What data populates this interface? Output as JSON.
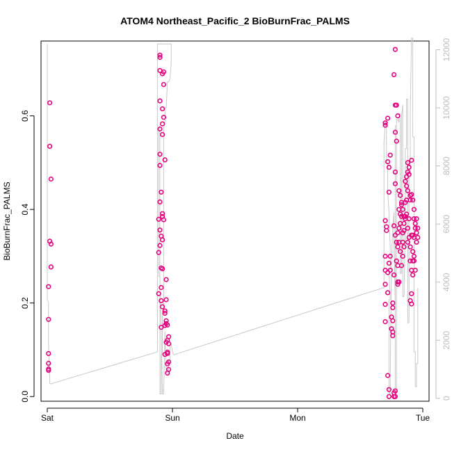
{
  "chart_data": {
    "type": "scatter",
    "title": "ATOM4 Northeast_Pacific_2 BioBurnFrac_PALMS",
    "xlabel": "Date",
    "ylabel": "BioBurnFrac_PALMS",
    "x_axis": {
      "type": "date",
      "ticks": [
        "Sat",
        "Sun",
        "Mon",
        "Tue"
      ],
      "range_days": [
        -0.05,
        3.05
      ]
    },
    "y_axis": {
      "ticks": [
        "0.0",
        "0.2",
        "0.4",
        "0.6"
      ],
      "ylim": [
        -0.01,
        0.76
      ]
    },
    "y2_axis": {
      "ticks": [
        "0",
        "2000",
        "4000",
        "6000",
        "8000",
        "10000",
        "12000"
      ],
      "ylim": [
        -100,
        12300
      ]
    },
    "colors": {
      "points": "#e6007e",
      "altitude_line": "#c8c8c8",
      "axis": "#000000",
      "right_axis": "#bdbdbd"
    },
    "series": [
      {
        "role": "scatter",
        "points": [
          [
            0.02,
            0.628
          ],
          [
            0.02,
            0.535
          ],
          [
            0.03,
            0.465
          ],
          [
            0.02,
            0.332
          ],
          [
            0.03,
            0.326
          ],
          [
            0.03,
            0.277
          ],
          [
            0.01,
            0.235
          ],
          [
            0.01,
            0.165
          ],
          [
            0.01,
            0.092
          ],
          [
            0.01,
            0.071
          ],
          [
            0.01,
            0.059
          ],
          [
            0.01,
            0.056
          ],
          [
            0.9,
            0.73
          ],
          [
            0.9,
            0.725
          ],
          [
            0.9,
            0.697
          ],
          [
            0.92,
            0.69
          ],
          [
            0.93,
            0.694
          ],
          [
            0.93,
            0.667
          ],
          [
            0.9,
            0.632
          ],
          [
            0.92,
            0.615
          ],
          [
            0.93,
            0.597
          ],
          [
            0.92,
            0.583
          ],
          [
            0.9,
            0.572
          ],
          [
            0.92,
            0.56
          ],
          [
            0.9,
            0.518
          ],
          [
            0.94,
            0.506
          ],
          [
            0.9,
            0.494
          ],
          [
            0.91,
            0.437
          ],
          [
            0.9,
            0.416
          ],
          [
            0.92,
            0.391
          ],
          [
            0.92,
            0.385
          ],
          [
            0.89,
            0.379
          ],
          [
            0.93,
            0.378
          ],
          [
            0.9,
            0.356
          ],
          [
            0.91,
            0.343
          ],
          [
            0.92,
            0.335
          ],
          [
            0.9,
            0.323
          ],
          [
            0.89,
            0.308
          ],
          [
            0.91,
            0.275
          ],
          [
            0.92,
            0.273
          ],
          [
            0.95,
            0.25
          ],
          [
            0.89,
            0.22
          ],
          [
            0.91,
            0.233
          ],
          [
            0.95,
            0.207
          ],
          [
            0.91,
            0.205
          ],
          [
            0.92,
            0.192
          ],
          [
            0.94,
            0.183
          ],
          [
            0.94,
            0.178
          ],
          [
            0.95,
            0.162
          ],
          [
            0.95,
            0.156
          ],
          [
            0.94,
            0.152
          ],
          [
            0.96,
            0.153
          ],
          [
            0.91,
            0.148
          ],
          [
            0.97,
            0.128
          ],
          [
            0.96,
            0.12
          ],
          [
            0.95,
            0.116
          ],
          [
            0.97,
            0.113
          ],
          [
            0.94,
            0.09
          ],
          [
            0.96,
            0.095
          ],
          [
            0.96,
            0.092
          ],
          [
            0.97,
            0.074
          ],
          [
            0.96,
            0.07
          ],
          [
            0.97,
            0.058
          ],
          [
            0.96,
            0.05
          ],
          [
            2.7,
            0.585
          ],
          [
            2.7,
            0.58
          ],
          [
            2.72,
            0.595
          ],
          [
            2.7,
            0.376
          ],
          [
            2.71,
            0.363
          ],
          [
            2.71,
            0.355
          ],
          [
            2.7,
            0.3
          ],
          [
            2.7,
            0.27
          ],
          [
            2.72,
            0.265
          ],
          [
            2.7,
            0.24
          ],
          [
            2.72,
            0.222
          ],
          [
            2.7,
            0.197
          ],
          [
            2.7,
            0.16
          ],
          [
            2.72,
            0.502
          ],
          [
            2.73,
            0.49
          ],
          [
            2.74,
            0.516
          ],
          [
            2.73,
            0.437
          ],
          [
            2.74,
            0.3
          ],
          [
            2.73,
            0.285
          ],
          [
            2.74,
            0.27
          ],
          [
            2.72,
            0.045
          ],
          [
            2.73,
            0.015
          ],
          [
            2.73,
            0.0
          ],
          [
            2.76,
            0.2
          ],
          [
            2.76,
            0.19
          ],
          [
            2.75,
            0.17
          ],
          [
            2.76,
            0.162
          ],
          [
            2.75,
            0.145
          ],
          [
            2.76,
            0.138
          ],
          [
            2.76,
            0.13
          ],
          [
            2.77,
            0.365
          ],
          [
            2.78,
            0.455
          ],
          [
            2.78,
            0.48
          ],
          [
            2.77,
            0.26
          ],
          [
            2.78,
            0.345
          ],
          [
            2.79,
            0.33
          ],
          [
            2.8,
            0.32
          ],
          [
            2.79,
            0.29
          ],
          [
            2.8,
            0.28
          ],
          [
            2.8,
            0.245
          ],
          [
            2.81,
            0.245
          ],
          [
            2.8,
            0.24
          ],
          [
            2.77,
            0.008
          ],
          [
            2.78,
            0.012
          ],
          [
            2.77,
            0.0
          ],
          [
            2.78,
            0.0
          ],
          [
            2.77,
            0.688
          ],
          [
            2.78,
            0.742
          ],
          [
            2.78,
            0.623
          ],
          [
            2.79,
            0.623
          ],
          [
            2.78,
            0.565
          ],
          [
            2.8,
            0.6
          ],
          [
            2.79,
            0.546
          ],
          [
            2.81,
            0.44
          ],
          [
            2.82,
            0.43
          ],
          [
            2.83,
            0.41
          ],
          [
            2.81,
            0.4
          ],
          [
            2.82,
            0.39
          ],
          [
            2.83,
            0.385
          ],
          [
            2.82,
            0.37
          ],
          [
            2.81,
            0.36
          ],
          [
            2.8,
            0.35
          ],
          [
            2.81,
            0.33
          ],
          [
            2.82,
            0.31
          ],
          [
            2.84,
            0.35
          ],
          [
            2.83,
            0.415
          ],
          [
            2.84,
            0.4
          ],
          [
            2.85,
            0.385
          ],
          [
            2.85,
            0.37
          ],
          [
            2.84,
            0.33
          ],
          [
            2.85,
            0.32
          ],
          [
            2.84,
            0.3
          ],
          [
            2.83,
            0.28
          ],
          [
            2.85,
            0.355
          ],
          [
            2.86,
            0.415
          ],
          [
            2.86,
            0.385
          ],
          [
            2.86,
            0.38
          ],
          [
            2.87,
            0.39
          ],
          [
            2.88,
            0.5
          ],
          [
            2.88,
            0.48
          ],
          [
            2.87,
            0.47
          ],
          [
            2.86,
            0.46
          ],
          [
            2.87,
            0.45
          ],
          [
            2.88,
            0.44
          ],
          [
            2.87,
            0.42
          ],
          [
            2.88,
            0.36
          ],
          [
            2.89,
            0.49
          ],
          [
            2.89,
            0.475
          ],
          [
            2.9,
            0.43
          ],
          [
            2.9,
            0.42
          ],
          [
            2.89,
            0.38
          ],
          [
            2.89,
            0.34
          ],
          [
            2.88,
            0.33
          ],
          [
            2.9,
            0.32
          ],
          [
            2.91,
            0.505
          ],
          [
            2.91,
            0.432
          ],
          [
            2.91,
            0.345
          ],
          [
            2.9,
            0.29
          ],
          [
            2.92,
            0.29
          ],
          [
            2.92,
            0.42
          ],
          [
            2.93,
            0.4
          ],
          [
            2.93,
            0.38
          ],
          [
            2.92,
            0.345
          ],
          [
            2.94,
            0.36
          ],
          [
            2.93,
            0.34
          ],
          [
            2.92,
            0.31
          ],
          [
            2.93,
            0.3
          ],
          [
            2.91,
            0.27
          ],
          [
            2.92,
            0.26
          ],
          [
            2.93,
            0.29
          ],
          [
            2.94,
            0.27
          ],
          [
            2.91,
            0.22
          ],
          [
            2.9,
            0.205
          ],
          [
            2.91,
            0.198
          ],
          [
            2.95,
            0.33
          ],
          [
            2.95,
            0.38
          ],
          [
            2.94,
            0.37
          ],
          [
            2.96,
            0.36
          ],
          [
            2.95,
            0.35
          ],
          [
            2.96,
            0.34
          ]
        ]
      },
      {
        "role": "altitude",
        "axis": "right",
        "points": [
          [
            0.0,
            12200
          ],
          [
            0.0,
            3400
          ],
          [
            0.01,
            3300
          ],
          [
            0.01,
            1800
          ],
          [
            0.02,
            700
          ],
          [
            0.02,
            500
          ],
          [
            0.03,
            500
          ],
          [
            0.88,
            1600
          ],
          [
            0.88,
            12200
          ],
          [
            0.9,
            12200
          ],
          [
            0.91,
            12200
          ],
          [
            0.92,
            12200
          ],
          [
            0.93,
            12200
          ],
          [
            0.94,
            12200
          ],
          [
            0.95,
            12200
          ],
          [
            0.96,
            12200
          ],
          [
            0.97,
            12200
          ],
          [
            0.98,
            12200
          ],
          [
            0.99,
            12200
          ],
          [
            0.99,
            11500
          ],
          [
            0.98,
            11000
          ],
          [
            0.97,
            10900
          ],
          [
            0.96,
            10900
          ],
          [
            0.95,
            10000
          ],
          [
            0.94,
            10000
          ],
          [
            0.94,
            9500
          ],
          [
            0.93,
            9300
          ],
          [
            0.93,
            3000
          ],
          [
            0.92,
            3000
          ],
          [
            0.92,
            2300
          ],
          [
            0.92,
            2200
          ],
          [
            0.92,
            1500
          ],
          [
            0.91,
            1500
          ],
          [
            0.91,
            150
          ],
          [
            0.9,
            150
          ],
          [
            0.9,
            9300
          ],
          [
            0.89,
            9300
          ],
          [
            0.89,
            5600
          ],
          [
            0.89,
            4200
          ],
          [
            0.9,
            4200
          ],
          [
            0.9,
            3700
          ],
          [
            0.91,
            2500
          ],
          [
            0.92,
            150
          ],
          [
            0.93,
            150
          ],
          [
            0.94,
            2300
          ],
          [
            0.95,
            900
          ],
          [
            0.97,
            800
          ],
          [
            0.97,
            1300
          ],
          [
            0.98,
            1300
          ],
          [
            0.98,
            1800
          ],
          [
            0.99,
            1900
          ],
          [
            1.0,
            1600
          ],
          [
            1.01,
            1500
          ],
          [
            2.68,
            3800
          ],
          [
            2.69,
            3800
          ],
          [
            2.69,
            5700
          ],
          [
            2.69,
            8800
          ],
          [
            2.7,
            9500
          ],
          [
            2.71,
            9500
          ],
          [
            2.71,
            8100
          ],
          [
            2.72,
            8100
          ],
          [
            2.72,
            7100
          ],
          [
            2.73,
            6400
          ],
          [
            2.74,
            5200
          ],
          [
            2.74,
            4500
          ],
          [
            2.73,
            4400
          ],
          [
            2.74,
            3400
          ],
          [
            2.73,
            3400
          ],
          [
            2.73,
            150
          ],
          [
            2.74,
            150
          ],
          [
            2.74,
            800
          ],
          [
            2.75,
            4700
          ],
          [
            2.76,
            5900
          ],
          [
            2.77,
            6400
          ],
          [
            2.77,
            5400
          ],
          [
            2.78,
            3200
          ],
          [
            2.78,
            9400
          ],
          [
            2.78,
            200
          ],
          [
            2.79,
            200
          ],
          [
            2.79,
            9600
          ],
          [
            2.8,
            9600
          ],
          [
            2.81,
            9500
          ],
          [
            2.81,
            9800
          ],
          [
            2.82,
            9800
          ],
          [
            2.82,
            4300
          ],
          [
            2.83,
            4300
          ],
          [
            2.83,
            9700
          ],
          [
            2.84,
            10100
          ],
          [
            2.84,
            3500
          ],
          [
            2.85,
            3500
          ],
          [
            2.86,
            5800
          ],
          [
            2.86,
            8600
          ],
          [
            2.87,
            8600
          ],
          [
            2.87,
            10300
          ],
          [
            2.88,
            10300
          ],
          [
            2.88,
            2600
          ],
          [
            2.89,
            2600
          ],
          [
            2.89,
            7600
          ],
          [
            2.9,
            7600
          ],
          [
            2.9,
            9900
          ],
          [
            2.91,
            12400
          ],
          [
            2.92,
            12400
          ],
          [
            2.92,
            10700
          ],
          [
            2.92,
            9000
          ],
          [
            2.93,
            9000
          ],
          [
            2.93,
            1600
          ],
          [
            2.94,
            1600
          ],
          [
            2.94,
            400
          ],
          [
            2.95,
            400
          ],
          [
            2.95,
            1200
          ],
          [
            2.96,
            1200
          ],
          [
            2.96,
            1500
          ],
          [
            2.96,
            3800
          ]
        ]
      }
    ]
  }
}
